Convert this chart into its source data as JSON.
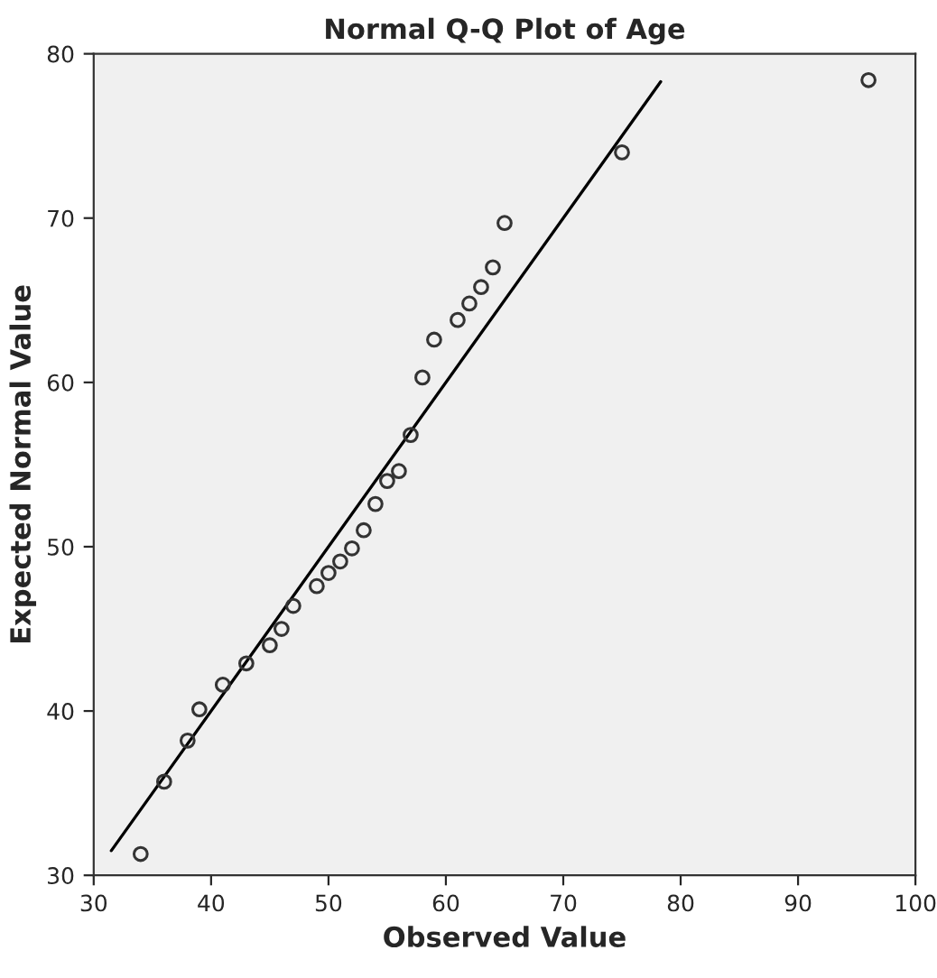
{
  "chart_data": {
    "type": "scatter",
    "title": "Normal Q-Q Plot of Age",
    "xlabel": "Observed Value",
    "ylabel": "Expected Normal Value",
    "xlim": [
      30,
      100
    ],
    "ylim": [
      30,
      80
    ],
    "xticks": [
      30,
      40,
      50,
      60,
      70,
      80,
      90,
      100
    ],
    "yticks": [
      30,
      40,
      50,
      60,
      70,
      80
    ],
    "grid": false,
    "series": [
      {
        "marker": "circle",
        "color": "#333333",
        "x": [
          34,
          36,
          38,
          39,
          41,
          43,
          45,
          46,
          47,
          49,
          50,
          51,
          52,
          53,
          54,
          55,
          56,
          57,
          58,
          59,
          61,
          62,
          63,
          64,
          65,
          75,
          96
        ],
        "values": [
          31.3,
          35.7,
          38.2,
          40.1,
          41.6,
          42.9,
          44.0,
          45.0,
          46.4,
          47.6,
          48.4,
          49.1,
          49.9,
          51.0,
          52.6,
          54.0,
          54.6,
          56.8,
          60.3,
          62.6,
          63.8,
          64.8,
          65.8,
          67.0,
          69.7,
          74.0,
          78.4
        ]
      },
      {
        "type": "line",
        "color": "#000000",
        "x": [
          31.5,
          78.3
        ],
        "values": [
          31.5,
          78.3
        ]
      }
    ]
  }
}
